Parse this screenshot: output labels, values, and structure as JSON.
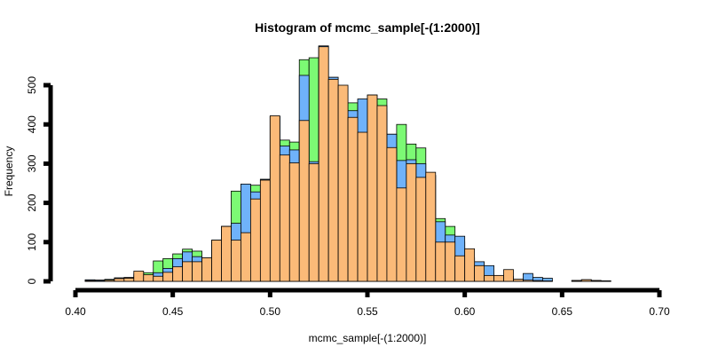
{
  "chart_data": {
    "type": "bar",
    "title": "Histogram of mcmc_sample[-(1:2000)]",
    "xlabel": "mcmc_sample[-(1:2000)]",
    "ylabel": "Frequency",
    "xlim": [
      0.4,
      0.7
    ],
    "ylim": [
      0,
      600
    ],
    "xticks": [
      "0.40",
      "0.45",
      "0.50",
      "0.55",
      "0.60",
      "0.65",
      "0.70"
    ],
    "yticks": [
      "0",
      "100",
      "200",
      "300",
      "400",
      "500"
    ],
    "bin_width": 0.005,
    "bin_starts": [
      0.405,
      0.41,
      0.415,
      0.42,
      0.425,
      0.43,
      0.435,
      0.44,
      0.445,
      0.45,
      0.455,
      0.46,
      0.465,
      0.47,
      0.475,
      0.48,
      0.485,
      0.49,
      0.495,
      0.5,
      0.505,
      0.51,
      0.515,
      0.52,
      0.525,
      0.53,
      0.535,
      0.54,
      0.545,
      0.55,
      0.555,
      0.56,
      0.565,
      0.57,
      0.575,
      0.58,
      0.585,
      0.59,
      0.595,
      0.6,
      0.605,
      0.61,
      0.615,
      0.62,
      0.625,
      0.63,
      0.635,
      0.64,
      0.645,
      0.65,
      0.655,
      0.66,
      0.665,
      0.67,
      0.675,
      0.68,
      0.685,
      0.69,
      0.695
    ],
    "series": [
      {
        "color": "#7CFA74",
        "values": [
          2,
          3,
          5,
          7,
          10,
          16,
          22,
          52,
          58,
          70,
          82,
          77,
          60,
          105,
          140,
          230,
          215,
          245,
          260,
          420,
          360,
          355,
          565,
          570,
          600,
          520,
          490,
          455,
          440,
          475,
          465,
          375,
          400,
          350,
          340,
          270,
          160,
          140,
          100,
          60,
          50,
          20,
          15,
          10,
          5,
          3,
          2,
          1,
          0,
          0,
          2,
          4,
          2,
          1,
          0,
          0,
          0,
          0,
          0
        ]
      },
      {
        "color": "#6FB2FA",
        "values": [
          4,
          3,
          3,
          9,
          9,
          19,
          13,
          22,
          33,
          58,
          75,
          63,
          50,
          100,
          140,
          148,
          248,
          228,
          260,
          420,
          345,
          335,
          525,
          305,
          600,
          520,
          495,
          435,
          465,
          455,
          432,
          375,
          308,
          310,
          300,
          270,
          152,
          118,
          115,
          60,
          50,
          40,
          14,
          13,
          5,
          20,
          10,
          8,
          0,
          0,
          2,
          4,
          2,
          1,
          0,
          0,
          0,
          0,
          0
        ]
      },
      {
        "color": "#FBBA78",
        "values": [
          2,
          1,
          3,
          7,
          8,
          26,
          17,
          13,
          23,
          37,
          50,
          50,
          60,
          105,
          140,
          105,
          124,
          210,
          258,
          422,
          322,
          302,
          410,
          300,
          598,
          515,
          500,
          418,
          380,
          475,
          448,
          341,
          238,
          300,
          265,
          278,
          100,
          100,
          65,
          83,
          40,
          15,
          15,
          30,
          5,
          3,
          2,
          1,
          0,
          0,
          2,
          4,
          2,
          1,
          0,
          0,
          0,
          0,
          0
        ]
      }
    ]
  }
}
